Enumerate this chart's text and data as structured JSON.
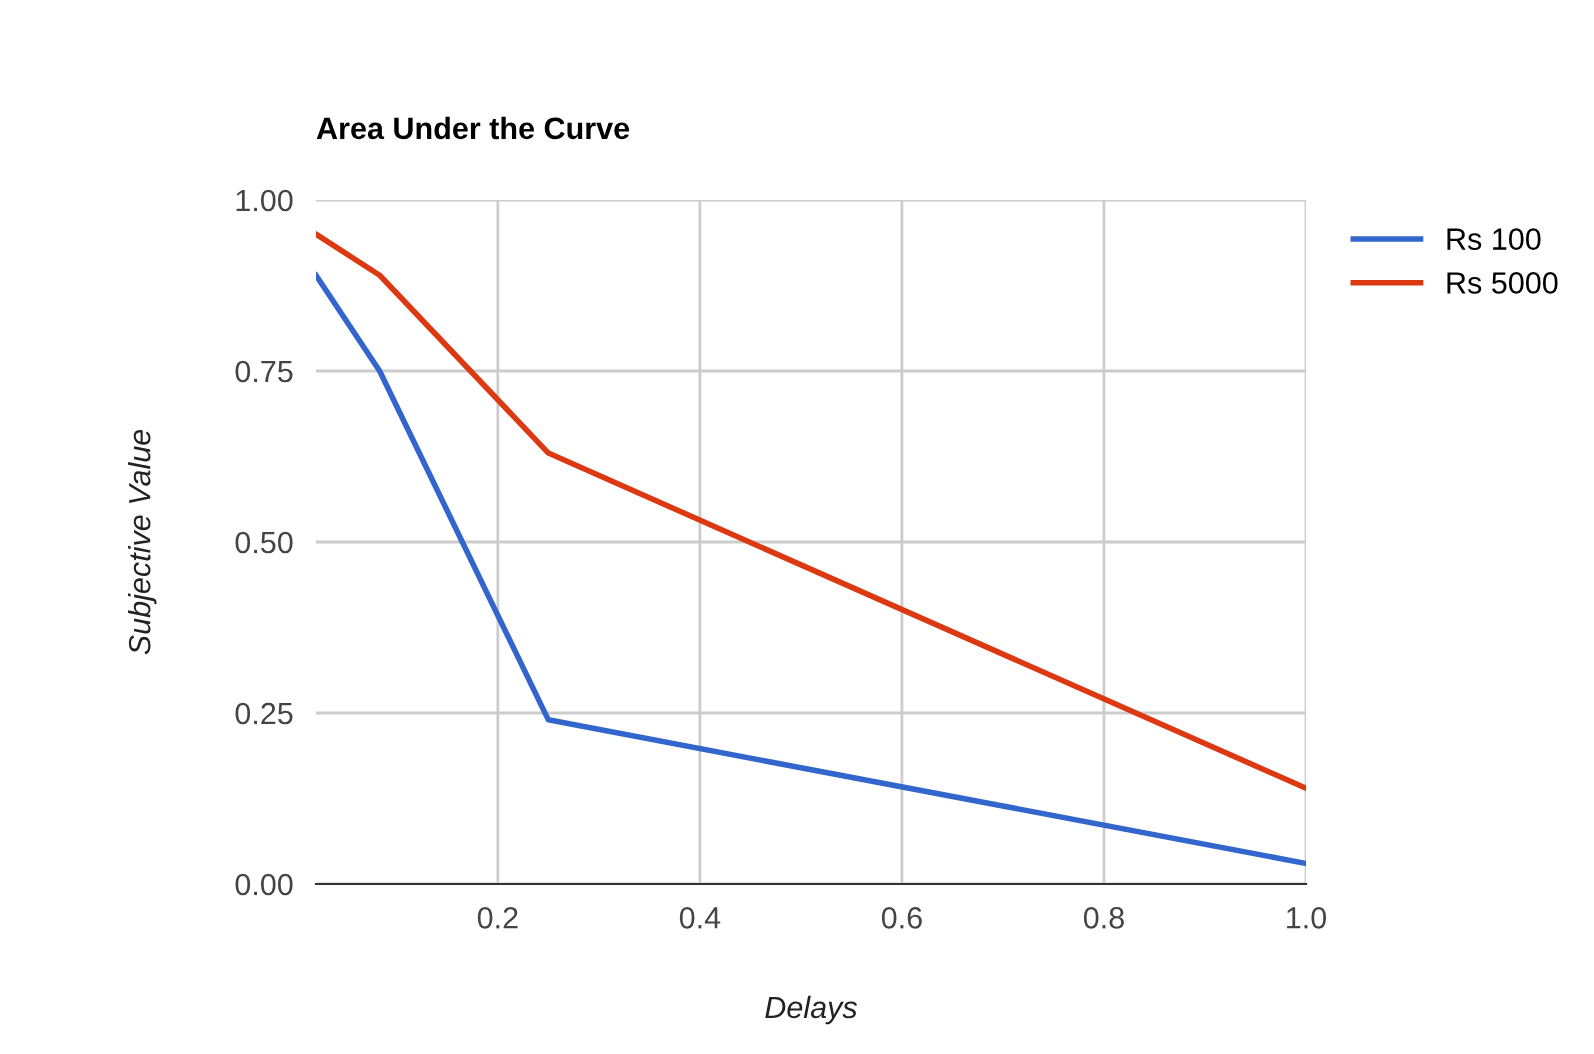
{
  "chart_data": {
    "type": "line",
    "title": "Area Under the Curve",
    "xlabel": "Delays",
    "ylabel": "Subjective Value",
    "xlim": [
      0.02,
      1.0
    ],
    "xticks": [
      0.2,
      0.4,
      0.6,
      0.8,
      {
        "value": 1.0,
        "label": "1.0"
      }
    ],
    "ylim": [
      0,
      1
    ],
    "yticks": [
      {
        "value": 0,
        "label": "0.00"
      },
      {
        "value": 0.25,
        "label": "0.25"
      },
      {
        "value": 0.5,
        "label": "0.50"
      },
      {
        "value": 0.75,
        "label": "0.75"
      },
      {
        "value": 1,
        "label": "1.00"
      }
    ],
    "grid": true,
    "legend": "right",
    "marker": "none",
    "line_style": "solid",
    "series": [
      {
        "name": "Rs 100",
        "color": "#3366cc",
        "x": [
          0.02,
          0.083,
          0.25,
          1.0
        ],
        "values": [
          0.89,
          0.75,
          0.24,
          0.03
        ]
      },
      {
        "name": "Rs 5000",
        "color": "#dc3912",
        "x": [
          0.02,
          0.083,
          0.25,
          1.0
        ],
        "values": [
          0.95,
          0.89,
          0.63,
          0.14
        ]
      }
    ]
  }
}
